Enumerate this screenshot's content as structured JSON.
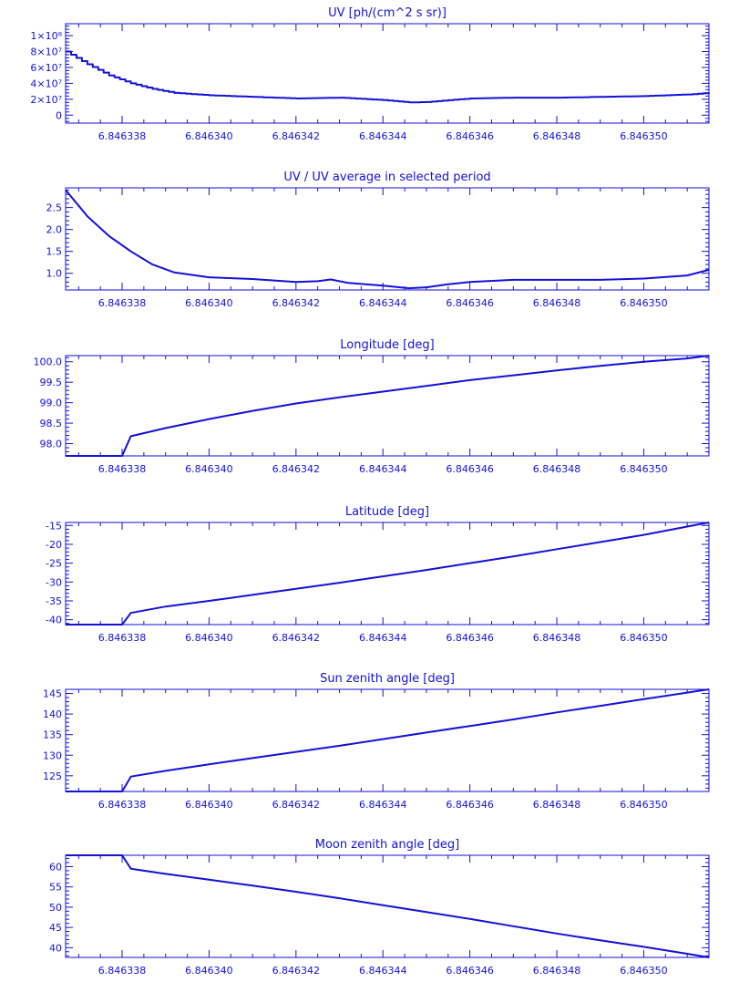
{
  "chart_data": [
    {
      "type": "line",
      "title": "UV [ph/(cm^2 s sr)]",
      "xlim": [
        6.8463367,
        6.8463515
      ],
      "ylim": [
        -10000000,
        115000000
      ],
      "xticks": [
        "6.846338",
        "6.846340",
        "6.846342",
        "6.846344",
        "6.846346",
        "6.846348",
        "6.846350"
      ],
      "ytick_values": [
        0,
        20000000,
        40000000,
        60000000,
        80000000,
        100000000
      ],
      "ytick_labels": [
        "0",
        "2×10⁷",
        "4×10⁷",
        "6×10⁷",
        "8×10⁷",
        "1×10⁸"
      ],
      "step": true,
      "x": [
        6.8463367,
        6.8463372,
        6.8463377,
        6.8463382,
        6.8463387,
        6.8463392,
        6.84634,
        6.846341,
        6.846342,
        6.8463425,
        6.846343,
        6.846344,
        6.8463446,
        6.846345,
        6.846346,
        6.846347,
        6.846348,
        6.846349,
        6.84635,
        6.846351,
        6.8463515
      ],
      "y": [
        80000000,
        64000000,
        50000000,
        40000000,
        33000000,
        28000000,
        25000000,
        23000000,
        21000000,
        21500000,
        22000000,
        19000000,
        16000000,
        16500000,
        21000000,
        22000000,
        22000000,
        23000000,
        24000000,
        26000000,
        28000000
      ]
    },
    {
      "type": "line",
      "title": "UV / UV average in selected period",
      "xlim": [
        6.8463367,
        6.8463515
      ],
      "ylim": [
        0.62,
        2.95
      ],
      "xticks": [
        "6.846338",
        "6.846340",
        "6.846342",
        "6.846344",
        "6.846346",
        "6.846348",
        "6.846350"
      ],
      "ytick_values": [
        1.0,
        1.5,
        2.0,
        2.5
      ],
      "ytick_labels": [
        "1.0",
        "1.5",
        "2.0",
        "2.5"
      ],
      "x": [
        6.8463367,
        6.8463372,
        6.8463377,
        6.8463382,
        6.8463387,
        6.8463392,
        6.84634,
        6.846341,
        6.846342,
        6.8463425,
        6.8463428,
        6.8463432,
        6.846344,
        6.8463446,
        6.846345,
        6.8463455,
        6.846346,
        6.846347,
        6.846348,
        6.846349,
        6.84635,
        6.846351,
        6.8463515
      ],
      "y": [
        2.9,
        2.3,
        1.85,
        1.5,
        1.2,
        1.02,
        0.91,
        0.87,
        0.8,
        0.82,
        0.86,
        0.78,
        0.72,
        0.66,
        0.68,
        0.75,
        0.8,
        0.85,
        0.85,
        0.85,
        0.88,
        0.95,
        1.08
      ]
    },
    {
      "type": "line",
      "title": "Longitude [deg]",
      "xlim": [
        6.8463367,
        6.8463515
      ],
      "ylim": [
        97.7,
        100.15
      ],
      "xticks": [
        "6.846338",
        "6.846340",
        "6.846342",
        "6.846344",
        "6.846346",
        "6.846348",
        "6.846350"
      ],
      "ytick_values": [
        98.0,
        98.5,
        99.0,
        99.5,
        100.0
      ],
      "ytick_labels": [
        "98.0",
        "98.5",
        "99.0",
        "99.5",
        "100.0"
      ],
      "x": [
        6.8463367,
        6.846338,
        6.8463382,
        6.846339,
        6.84634,
        6.846341,
        6.846342,
        6.846343,
        6.846344,
        6.846345,
        6.846346,
        6.846347,
        6.846348,
        6.846349,
        6.84635,
        6.846351,
        6.8463515
      ],
      "y": [
        97.7,
        97.7,
        98.18,
        98.38,
        98.6,
        98.8,
        98.98,
        99.13,
        99.27,
        99.41,
        99.55,
        99.67,
        99.79,
        99.9,
        100.0,
        100.08,
        100.15
      ]
    },
    {
      "type": "line",
      "title": "Latitude [deg]",
      "xlim": [
        6.8463367,
        6.8463515
      ],
      "ylim": [
        -41.3,
        -14.2
      ],
      "xticks": [
        "6.846338",
        "6.846340",
        "6.846342",
        "6.846344",
        "6.846346",
        "6.846348",
        "6.846350"
      ],
      "ytick_values": [
        -40,
        -35,
        -30,
        -25,
        -20,
        -15
      ],
      "ytick_labels": [
        "-40",
        "-35",
        "-30",
        "-25",
        "-20",
        "-15"
      ],
      "x": [
        6.8463367,
        6.846338,
        6.8463382,
        6.846339,
        6.84634,
        6.846341,
        6.846342,
        6.846343,
        6.846344,
        6.846345,
        6.846346,
        6.846347,
        6.846348,
        6.846349,
        6.84635,
        6.846351,
        6.8463515
      ],
      "y": [
        -41.3,
        -41.3,
        -38.2,
        -36.5,
        -35.0,
        -33.4,
        -31.8,
        -30.2,
        -28.5,
        -26.8,
        -25.0,
        -23.2,
        -21.3,
        -19.4,
        -17.5,
        -15.3,
        -14.2
      ]
    },
    {
      "type": "line",
      "title": "Sun zenith angle [deg]",
      "xlim": [
        6.8463367,
        6.8463515
      ],
      "ylim": [
        121.2,
        146.0
      ],
      "xticks": [
        "6.846338",
        "6.846340",
        "6.846342",
        "6.846344",
        "6.846346",
        "6.846348",
        "6.846350"
      ],
      "ytick_values": [
        125,
        130,
        135,
        140,
        145
      ],
      "ytick_labels": [
        "125",
        "130",
        "135",
        "140",
        "145"
      ],
      "x": [
        6.8463367,
        6.846338,
        6.8463382,
        6.846339,
        6.84634,
        6.846341,
        6.846342,
        6.846343,
        6.846344,
        6.846345,
        6.846346,
        6.846347,
        6.846348,
        6.846349,
        6.84635,
        6.846351,
        6.8463515
      ],
      "y": [
        121.2,
        121.2,
        124.8,
        126.2,
        127.8,
        129.3,
        130.8,
        132.3,
        133.9,
        135.5,
        137.1,
        138.7,
        140.4,
        142.0,
        143.6,
        145.2,
        146.0
      ]
    },
    {
      "type": "line",
      "title": "Moon zenith angle [deg]",
      "xlim": [
        6.8463367,
        6.8463515
      ],
      "ylim": [
        37.6,
        62.8
      ],
      "xticks": [
        "6.846338",
        "6.846340",
        "6.846342",
        "6.846344",
        "6.846346",
        "6.846348",
        "6.846350"
      ],
      "ytick_values": [
        40,
        45,
        50,
        55,
        60
      ],
      "ytick_labels": [
        "40",
        "45",
        "50",
        "55",
        "60"
      ],
      "x": [
        6.8463367,
        6.846338,
        6.8463382,
        6.846339,
        6.84634,
        6.846341,
        6.846342,
        6.846343,
        6.846344,
        6.846345,
        6.846346,
        6.846347,
        6.846348,
        6.846349,
        6.84635,
        6.846351,
        6.8463515
      ],
      "y": [
        62.8,
        62.8,
        59.5,
        58.2,
        56.8,
        55.3,
        53.8,
        52.2,
        50.5,
        48.8,
        47.1,
        45.3,
        43.5,
        41.8,
        40.2,
        38.5,
        37.6
      ]
    }
  ]
}
